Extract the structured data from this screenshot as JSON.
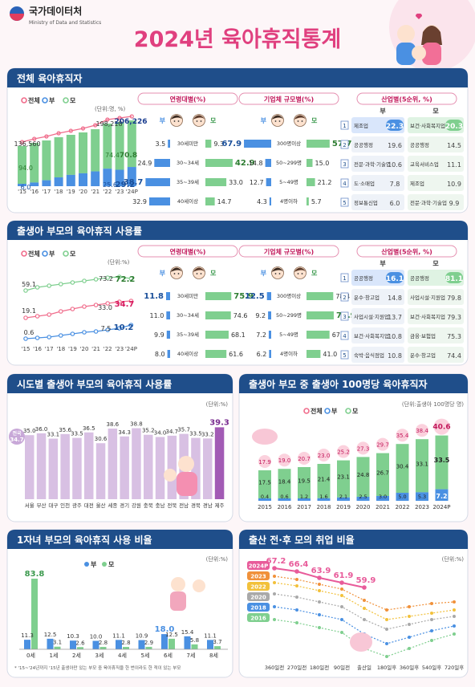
{
  "header": {
    "org_kr": "국가데이터처",
    "org_en": "Ministry of Data and Statistics",
    "title": "2024년 육아휴직통계"
  },
  "legend": {
    "total": "전체",
    "father": "부",
    "mother": "모"
  },
  "colors": {
    "total": "#f06d8c",
    "father": "#4a90e2",
    "mother": "#7fcf8f",
    "header": "#1f4e8a",
    "title": "#e0407f"
  },
  "s1": {
    "title": "전체 육아휴직자",
    "unit": "(단위:명, %)",
    "chart_data": {
      "type": "bar",
      "categories": [
        "'15",
        "'16",
        "'17",
        "'18",
        "'19",
        "'20",
        "'21",
        "'22",
        "'23",
        "'24P"
      ],
      "series": [
        {
          "name": "전체",
          "values": [
            136560,
            null,
            null,
            null,
            null,
            null,
            null,
            198218,
            206226,
            null
          ]
        },
        {
          "name": "부",
          "values": [
            6.0,
            null,
            null,
            null,
            null,
            null,
            null,
            null,
            25.6,
            29.2
          ]
        },
        {
          "name": "모",
          "values": [
            94.0,
            null,
            null,
            null,
            null,
            null,
            null,
            null,
            74.4,
            70.8
          ]
        }
      ],
      "labels": {
        "total_first": "136,560",
        "total_a": "198,218",
        "total_b": "206,226",
        "father_first": "6.0",
        "mother_first": "94.0",
        "father_a": "25.6",
        "father_b": "29.2",
        "mother_a": "74.4",
        "mother_b": "70.8"
      }
    },
    "age": {
      "title": "연령대별(%)",
      "chart_data": {
        "type": "bar",
        "categories": [
          "30세미만",
          "30~34세",
          "35~39세",
          "40세이상"
        ],
        "series": [
          {
            "name": "부",
            "values": [
              3.5,
              24.9,
              38.7,
              32.9
            ]
          },
          {
            "name": "모",
            "values": [
              9.3,
              42.9,
              33.0,
              14.7
            ]
          }
        ]
      },
      "father_labels": [
        "3.5",
        "24.9",
        "38.7",
        "32.9"
      ],
      "mother_labels": [
        "9.3",
        "42.9",
        "33.0",
        "14.7"
      ]
    },
    "size": {
      "title": "기업체 규모별(%)",
      "chart_data": {
        "type": "bar",
        "categories": [
          "300명이상",
          "50~299명",
          "5~49명",
          "4명이하"
        ],
        "series": [
          {
            "name": "부",
            "values": [
              67.9,
              14.8,
              12.7,
              4.3
            ]
          },
          {
            "name": "모",
            "values": [
              57.7,
              15.0,
              21.2,
              5.7
            ]
          }
        ]
      },
      "father_labels": [
        "67.9",
        "14.8",
        "12.7",
        "4.3"
      ],
      "mother_labels": [
        "57.7",
        "15.0",
        "21.2",
        "5.7"
      ]
    },
    "industry": {
      "title": "산업별(5순위, %)",
      "chart_data": {
        "type": "table",
        "columns": [
          "순위",
          "부",
          "부(%)",
          "모",
          "모(%)"
        ],
        "rows": [
          [
            "1",
            "제조업",
            "22.3",
            "보건·사회복지업",
            "20.3"
          ],
          [
            "2",
            "공공행정",
            "19.6",
            "공공행정",
            "14.5"
          ],
          [
            "3",
            "전문·과학·기술업",
            "10.6",
            "교육서비스업",
            "11.1"
          ],
          [
            "4",
            "도·소매업",
            "7.8",
            "제조업",
            "10.9"
          ],
          [
            "5",
            "정보통신업",
            "6.0",
            "전문·과학·기술업",
            "9.9"
          ]
        ]
      }
    }
  },
  "s2": {
    "title": "출생아 부모의 육아휴직 사용률",
    "unit": "(단위:%)",
    "chart_data": {
      "type": "line",
      "categories": [
        "'15",
        "'16",
        "'17",
        "'18",
        "'19",
        "'20",
        "'21",
        "'22",
        "'23",
        "'24P"
      ],
      "series": [
        {
          "name": "전체",
          "values": [
            19.1,
            null,
            null,
            null,
            null,
            null,
            null,
            null,
            33.0,
            34.7
          ]
        },
        {
          "name": "부",
          "values": [
            0.6,
            null,
            null,
            null,
            null,
            null,
            null,
            null,
            7.5,
            10.2
          ]
        },
        {
          "name": "모",
          "values": [
            59.1,
            null,
            null,
            null,
            null,
            null,
            null,
            null,
            73.2,
            72.2
          ]
        }
      ],
      "labels": {
        "m1": "59.1",
        "m2": "73.2",
        "m3": "72.2",
        "t1": "19.1",
        "t2": "33.0",
        "t3": "34.7",
        "f1": "0.6",
        "f2": "7.5",
        "f3": "10.2"
      }
    },
    "age": {
      "title": "연령대별(%)",
      "chart_data": {
        "type": "bar",
        "categories": [
          "30세미만",
          "30~34세",
          "35~39세",
          "40세이상"
        ],
        "series": [
          {
            "name": "부",
            "values": [
              11.8,
              11.0,
              9.9,
              8.0
            ]
          },
          {
            "name": "모",
            "values": [
              75.9,
              74.6,
              68.1,
              61.6
            ]
          }
        ]
      },
      "father_labels": [
        "11.8",
        "11.0",
        "9.9",
        "8.0"
      ],
      "mother_labels": [
        "75.9",
        "74.6",
        "68.1",
        "61.6"
      ]
    },
    "size": {
      "title": "기업체 규모별(%)",
      "chart_data": {
        "type": "bar",
        "categories": [
          "300명이상",
          "50~299명",
          "5~49명",
          "4명이하"
        ],
        "series": [
          {
            "name": "부",
            "values": [
              12.5,
              9.2,
              7.2,
              6.2
            ]
          },
          {
            "name": "모",
            "values": [
              78.4,
              79.9,
              67.5,
              41.0
            ]
          }
        ]
      },
      "father_labels": [
        "12.5",
        "9.2",
        "7.2",
        "6.2"
      ],
      "mother_labels": [
        "78.4",
        "79.9",
        "67.5",
        "41.0"
      ]
    },
    "industry": {
      "title": "산업별(5순위, %)",
      "chart_data": {
        "type": "table",
        "columns": [
          "순위",
          "부",
          "부(%)",
          "모",
          "모(%)"
        ],
        "rows": [
          [
            "1",
            "공공행정",
            "16.1",
            "공공행정",
            "81.1"
          ],
          [
            "2",
            "운수·창고업",
            "14.8",
            "사업시설·지원업",
            "79.8"
          ],
          [
            "3",
            "사업시설·지원업",
            "13.7",
            "보건·사회복지업",
            "79.3"
          ],
          [
            "4",
            "보건·사회복지업",
            "10.8",
            "금융·보험업",
            "75.3"
          ],
          [
            "5",
            "숙박·음식점업",
            "10.8",
            "운수·창고업",
            "74.4"
          ]
        ]
      }
    }
  },
  "s3": {
    "title": "시도별 출생아 부모의 육아휴직 사용률",
    "unit": "(단위:%)",
    "chart_data": {
      "type": "bar",
      "categories": [
        "서울",
        "부산",
        "대구",
        "인천",
        "광주",
        "대전",
        "울산",
        "세종",
        "경기",
        "강원",
        "충북",
        "충남",
        "전북",
        "전남",
        "경북",
        "경남",
        "제주"
      ],
      "values": [
        35.0,
        36.0,
        33.1,
        35.6,
        33.5,
        36.5,
        30.6,
        38.6,
        34.3,
        38.8,
        35.2,
        34.0,
        34.7,
        35.7,
        33.5,
        33.2,
        39.3
      ],
      "national_label": "전국",
      "national_value": "34.7",
      "value_labels": [
        "35.0",
        "36.0",
        "33.1",
        "35.6",
        "33.5",
        "36.5",
        "30.6",
        "38.6",
        "34.3",
        "38.8",
        "35.2",
        "34.0",
        "34.7",
        "35.7",
        "33.5",
        "33.2",
        "39.3"
      ]
    }
  },
  "s4": {
    "title": "출생아 부모 중 출생아 100명당 육아휴직자",
    "unit": "(단위:출생아 100명당 명)",
    "chart_data": {
      "type": "bar",
      "categories": [
        "2015",
        "2016",
        "2017",
        "2018",
        "2019",
        "2020",
        "2021",
        "2022",
        "2023",
        "2024P"
      ],
      "series": [
        {
          "name": "전체",
          "values": [
            17.9,
            19.0,
            20.7,
            23.0,
            25.2,
            27.3,
            29.7,
            35.4,
            38.4,
            40.6
          ]
        },
        {
          "name": "부",
          "values": [
            0.4,
            0.6,
            1.2,
            1.6,
            2.1,
            2.5,
            3.0,
            5.0,
            5.3,
            7.2
          ]
        },
        {
          "name": "모",
          "values": [
            17.5,
            18.4,
            19.5,
            21.4,
            23.1,
            24.8,
            26.7,
            30.4,
            33.1,
            33.5
          ]
        }
      ],
      "total_labels": [
        "17.9",
        "19.0",
        "20.7",
        "23.0",
        "25.2",
        "27.3",
        "29.7",
        "35.4",
        "38.4",
        "40.6"
      ],
      "father_labels": [
        "0.4",
        "0.6",
        "1.2",
        "1.6",
        "2.1",
        "2.5",
        "3.0",
        "5.0",
        "5.3",
        "7.2"
      ],
      "mother_labels": [
        "17.5",
        "18.4",
        "19.5",
        "21.4",
        "23.1",
        "24.8",
        "26.7",
        "30.4",
        "33.1",
        "33.5"
      ]
    }
  },
  "s5": {
    "title": "1자녀 부모의 육아휴직 사용 비율",
    "unit": "(단위:%)",
    "footnote": "* '15~'24년까지 '15년 출생아만 있는 부모 중 육아휴직을 한 번이라도 한 적이 있는 부모",
    "chart_data": {
      "type": "bar",
      "categories": [
        "0세",
        "1세",
        "2세",
        "3세",
        "4세",
        "5세",
        "6세",
        "7세",
        "8세"
      ],
      "series": [
        {
          "name": "부",
          "values": [
            11.3,
            12.5,
            10.3,
            10.0,
            11.1,
            10.9,
            18.0,
            15.4,
            11.1
          ]
        },
        {
          "name": "모",
          "values": [
            83.8,
            3.1,
            2.6,
            2.8,
            2.8,
            2.9,
            12.5,
            5.8,
            3.7
          ]
        }
      ],
      "father_labels": [
        "11.3",
        "12.5",
        "10.3",
        "10.0",
        "11.1",
        "10.9",
        "18.0",
        "15.4",
        "11.1"
      ],
      "mother_labels": [
        "83.8",
        "3.1",
        "2.6",
        "2.8",
        "2.8",
        "2.9",
        "12.5",
        "5.8",
        "3.7"
      ]
    }
  },
  "s6": {
    "title": "출산 전·후 모의 취업 비율",
    "unit": "(단위:%)",
    "chart_data": {
      "type": "line",
      "categories": [
        "360일전",
        "270일전",
        "180일전",
        "90일전",
        "출산일",
        "180일후",
        "360일후",
        "540일후",
        "720일후"
      ],
      "series": [
        {
          "name": "2024P",
          "values": [
            67.2,
            66.4,
            63.9,
            61.9,
            59.9,
            null,
            null,
            null,
            null
          ]
        },
        {
          "name": "2023",
          "values": [
            null,
            null,
            null,
            null,
            null,
            null,
            null,
            null,
            null
          ]
        },
        {
          "name": "2022",
          "values": [
            null,
            null,
            null,
            null,
            null,
            null,
            null,
            null,
            null
          ]
        },
        {
          "name": "2020",
          "values": [
            null,
            null,
            null,
            null,
            null,
            null,
            null,
            null,
            null
          ]
        },
        {
          "name": "2018",
          "values": [
            null,
            null,
            null,
            null,
            null,
            null,
            null,
            null,
            null
          ]
        },
        {
          "name": "2016",
          "values": [
            null,
            null,
            null,
            null,
            null,
            null,
            null,
            null,
            null
          ]
        }
      ],
      "labels_2024": [
        "67.2",
        "66.4",
        "63.9",
        "61.9",
        "59.9"
      ]
    }
  }
}
